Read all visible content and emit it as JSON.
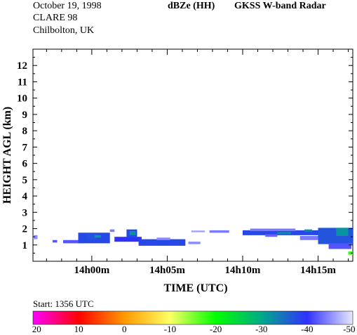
{
  "header": {
    "date": "October 19, 1998",
    "campaign": "CLARE 98",
    "location": "Chilbolton, UK",
    "product": "dBZe (HH)",
    "instrument": "GKSS  W-band Radar"
  },
  "footer": {
    "start_label": "Start: 1356 UTC"
  },
  "colors": {
    "echo_core": "#3b3bd6",
    "echo_edge": "#c8c8f5",
    "echo_strong": "#2e8b57",
    "background": "#ffffff"
  },
  "colorbar": {
    "ticks": [
      "20",
      "10",
      "0",
      "-10",
      "-20",
      "-30",
      "-40",
      "-50"
    ],
    "stops": [
      "#ff00ff",
      "#ff0000",
      "#ff9900",
      "#ffff66",
      "#00ff00",
      "#00aa88",
      "#3030ff",
      "#e8e8ff"
    ]
  },
  "chart_data": {
    "type": "heatmap",
    "xlabel": "TIME (UTC)",
    "ylabel": "HEIGHT AGL (km)",
    "x_unit": "minutes after 14h00",
    "xlim": [
      -3.9,
      17.3
    ],
    "ylim": [
      0,
      13
    ],
    "xticks": [
      0,
      5,
      10,
      15
    ],
    "xtick_labels": [
      "14h00m",
      "14h05m",
      "14h10m",
      "14h15m"
    ],
    "yticks": [
      1,
      2,
      3,
      4,
      5,
      6,
      7,
      8,
      9,
      10,
      11,
      12
    ],
    "ytick_labels": [
      "1",
      "2",
      "3",
      "4",
      "5",
      "6",
      "7",
      "8",
      "9",
      "10",
      "11",
      "12"
    ],
    "grid": false,
    "echo_cells": [
      {
        "t0": -3.9,
        "t1": -3.6,
        "h0": 1.35,
        "h1": 1.6,
        "dbze": -45
      },
      {
        "t0": -2.6,
        "t1": -2.3,
        "h0": 1.15,
        "h1": 1.3,
        "dbze": -42
      },
      {
        "t0": -1.9,
        "t1": -0.5,
        "h0": 1.1,
        "h1": 1.3,
        "dbze": -42
      },
      {
        "t0": -0.9,
        "t1": 1.2,
        "h0": 1.1,
        "h1": 1.75,
        "dbze": -38
      },
      {
        "t0": -0.3,
        "t1": 0.3,
        "h0": 1.35,
        "h1": 1.7,
        "dbze": -37
      },
      {
        "t0": 0.2,
        "t1": 0.6,
        "h0": 1.45,
        "h1": 1.6,
        "dbze": -31
      },
      {
        "t0": 1.2,
        "t1": 1.5,
        "h0": 1.8,
        "h1": 1.95,
        "dbze": -44
      },
      {
        "t0": 1.5,
        "t1": 3.3,
        "h0": 1.2,
        "h1": 1.5,
        "dbze": -40
      },
      {
        "t0": 2.3,
        "t1": 3.0,
        "h0": 1.45,
        "h1": 1.95,
        "dbze": -38
      },
      {
        "t0": 2.5,
        "t1": 2.9,
        "h0": 1.6,
        "h1": 1.85,
        "dbze": -32
      },
      {
        "t0": 3.1,
        "t1": 6.2,
        "h0": 0.95,
        "h1": 1.35,
        "dbze": -38
      },
      {
        "t0": 4.3,
        "t1": 5.2,
        "h0": 1.3,
        "h1": 1.45,
        "dbze": -45
      },
      {
        "t0": 6.4,
        "t1": 7.2,
        "h0": 1.05,
        "h1": 1.2,
        "dbze": -45
      },
      {
        "t0": 7.8,
        "t1": 9.1,
        "h0": 1.75,
        "h1": 1.9,
        "dbze": -44
      },
      {
        "t0": 6.6,
        "t1": 7.5,
        "h0": 1.78,
        "h1": 1.88,
        "dbze": -46
      },
      {
        "t0": 10.0,
        "t1": 15.0,
        "h0": 1.6,
        "h1": 1.9,
        "dbze": -38
      },
      {
        "t0": 10.5,
        "t1": 13.5,
        "h0": 1.85,
        "h1": 2.0,
        "dbze": -44
      },
      {
        "t0": 11.5,
        "t1": 12.3,
        "h0": 1.5,
        "h1": 1.65,
        "dbze": -43
      },
      {
        "t0": 12.3,
        "t1": 13.2,
        "h0": 1.65,
        "h1": 1.8,
        "dbze": -33
      },
      {
        "t0": 13.8,
        "t1": 15.3,
        "h0": 1.3,
        "h1": 1.55,
        "dbze": -44
      },
      {
        "t0": 15.0,
        "t1": 17.3,
        "h0": 1.05,
        "h1": 2.05,
        "dbze": -37
      },
      {
        "t0": 15.7,
        "t1": 17.2,
        "h0": 0.75,
        "h1": 1.1,
        "dbze": -42
      },
      {
        "t0": 16.2,
        "t1": 17.0,
        "h0": 1.55,
        "h1": 2.05,
        "dbze": -32
      },
      {
        "t0": 14.1,
        "t1": 14.6,
        "h0": 1.8,
        "h1": 1.95,
        "dbze": -33
      },
      {
        "t0": 17.0,
        "t1": 17.3,
        "h0": 0.4,
        "h1": 0.6,
        "dbze": -18
      }
    ]
  }
}
